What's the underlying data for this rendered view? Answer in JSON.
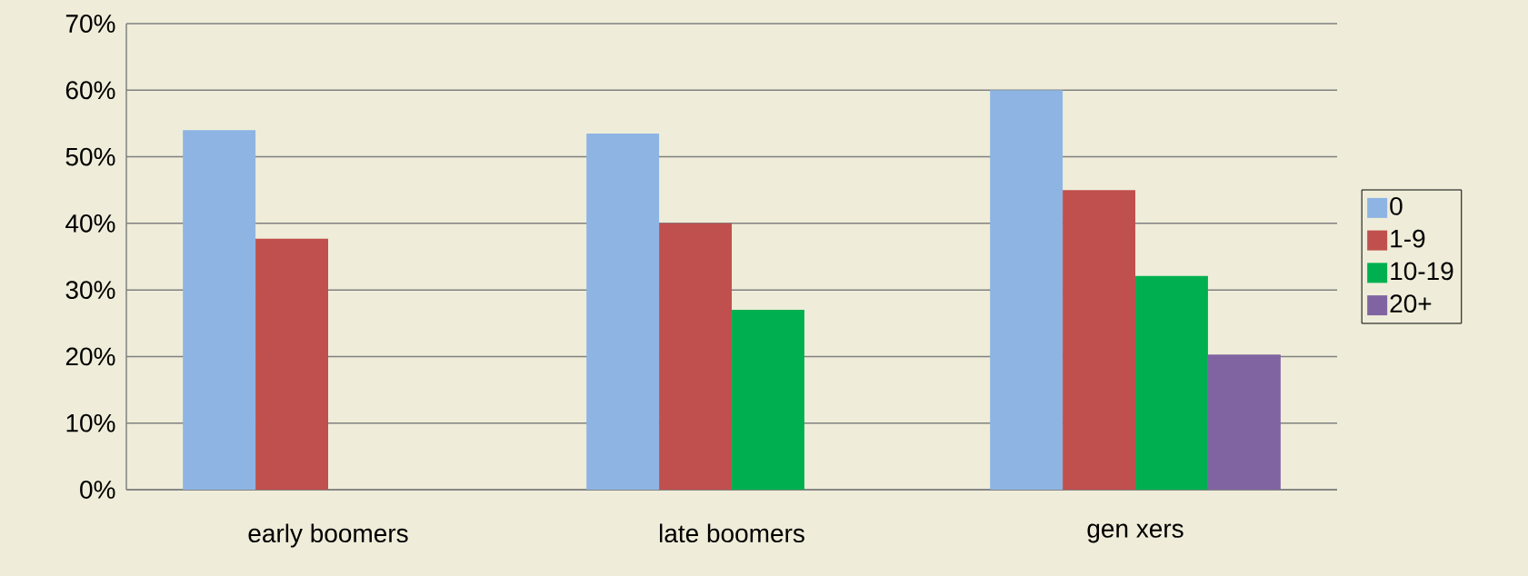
{
  "chart_data": {
    "type": "bar",
    "categories": [
      "early boomers",
      "late boomers",
      "gen xers"
    ],
    "series": [
      {
        "name": "0",
        "color": "#8eb4e3",
        "values": [
          54,
          53.5,
          60
        ]
      },
      {
        "name": "1-9",
        "color": "#c0504d",
        "values": [
          37.7,
          40,
          45
        ]
      },
      {
        "name": "10-19",
        "color": "#00b050",
        "values": [
          null,
          27,
          32.1
        ]
      },
      {
        "name": "20+",
        "color": "#8064a2",
        "values": [
          null,
          null,
          20.3
        ]
      }
    ],
    "ylim": [
      0,
      70
    ],
    "yticks": [
      {
        "value": 0,
        "label": "0%"
      },
      {
        "value": 10,
        "label": "10%"
      },
      {
        "value": 20,
        "label": "20%"
      },
      {
        "value": 30,
        "label": "30%"
      },
      {
        "value": 40,
        "label": "40%"
      },
      {
        "value": 50,
        "label": "50%"
      },
      {
        "value": 60,
        "label": "60%"
      },
      {
        "value": 70,
        "label": "70%"
      }
    ],
    "grid": "y",
    "legend": "right"
  }
}
